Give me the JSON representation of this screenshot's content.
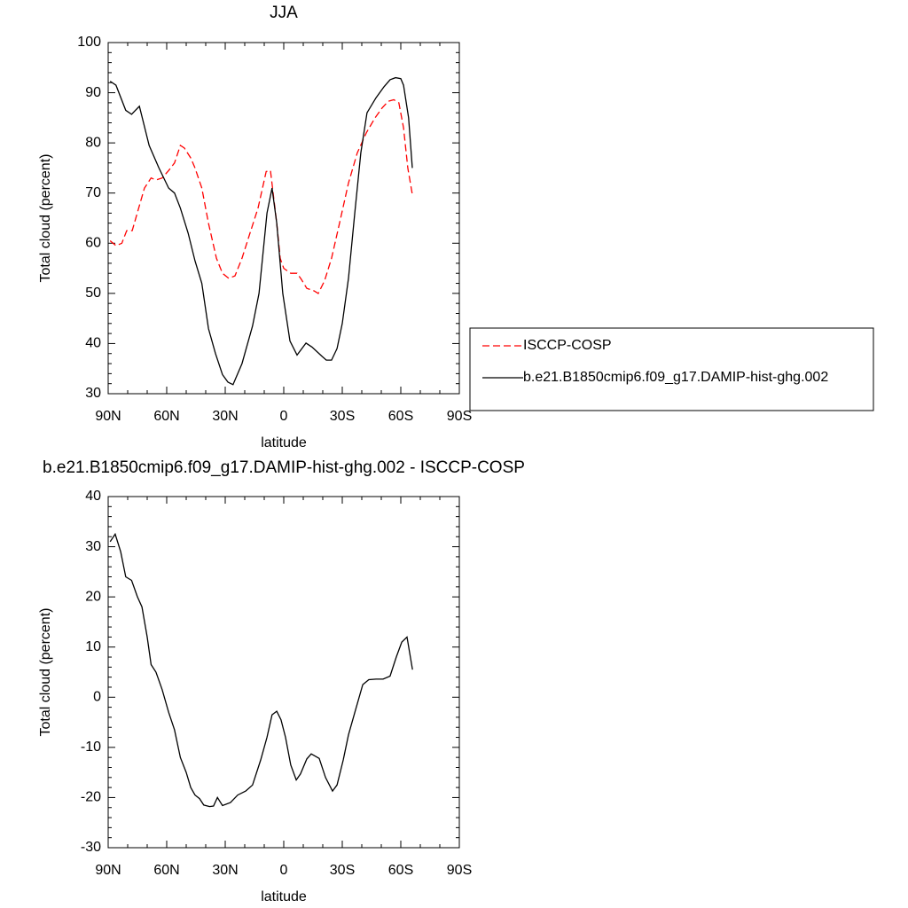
{
  "chart_data": [
    {
      "type": "line",
      "title": "JJA",
      "xlabel": "latitude",
      "ylabel": "Total cloud (percent)",
      "xlim": [
        90,
        -90
      ],
      "xticks": [
        {
          "value": 90,
          "label": "90N"
        },
        {
          "value": 60,
          "label": "60N"
        },
        {
          "value": 30,
          "label": "30N"
        },
        0,
        {
          "value": -30,
          "label": "30S"
        },
        {
          "value": -60,
          "label": "60S"
        },
        {
          "value": -90,
          "label": "90S"
        }
      ],
      "ylim": [
        30,
        100
      ],
      "yticks": [
        30,
        40,
        50,
        60,
        70,
        80,
        90,
        100
      ],
      "legend": "right",
      "series": [
        {
          "name": "ISCCP-COSP",
          "color": "#ff0000",
          "linestyle": "dashed",
          "x": [
            89,
            86,
            83,
            80.5,
            77.7,
            74,
            71.4,
            68,
            65.5,
            62.3,
            59,
            56,
            53,
            51,
            47.7,
            45.5,
            42,
            38.6,
            34.5,
            31.4,
            28.2,
            25,
            21.4,
            17.3,
            13.2,
            9,
            6.8,
            3.6,
            1.8,
            0,
            -3.6,
            -6.8,
            -9,
            -11.8,
            -15.5,
            -17.7,
            -20.9,
            -24.5,
            -28.6,
            -33.2,
            -37.7,
            -42.3,
            -46.8,
            -50.5,
            -53.6,
            -56.4,
            -59,
            -61.4,
            -63.6,
            -66
          ],
          "values": [
            60.5,
            59.5,
            60,
            62.5,
            62.5,
            67.5,
            71,
            73,
            72.6,
            73,
            74.5,
            76,
            79.5,
            79,
            77,
            75,
            71,
            64,
            57,
            54,
            53,
            53.5,
            57,
            62,
            67,
            74.3,
            74.5,
            64,
            57,
            55,
            54,
            54,
            52.8,
            51,
            50.5,
            50,
            52.5,
            57,
            64,
            72,
            78,
            82,
            85,
            87,
            88.3,
            88.6,
            88,
            83,
            75,
            69.5
          ]
        },
        {
          "name": "b.e21.B1850cmip6.f09_g17.DAMIP-hist-ghg.002",
          "color": "#000000",
          "linestyle": "solid",
          "x": [
            89,
            86,
            81,
            78,
            74,
            69,
            64,
            59,
            56,
            53,
            49,
            45.5,
            42,
            38.6,
            35,
            31.4,
            28.6,
            26,
            21.4,
            16,
            12.7,
            8.6,
            6,
            3.6,
            0.5,
            -3.2,
            -6.8,
            -11.4,
            -14.5,
            -19.5,
            -21.8,
            -24.5,
            -27.3,
            -30,
            -33.2,
            -36.4,
            -39.5,
            -42.7,
            -47.3,
            -51.4,
            -54.5,
            -57.3,
            -60,
            -61.4,
            -64,
            -65.9
          ],
          "values": [
            92.3,
            91.5,
            86.5,
            85.7,
            87.3,
            79.5,
            75,
            71,
            70,
            67,
            62,
            56.5,
            52,
            43,
            38,
            33.8,
            32.3,
            31.8,
            36,
            43.5,
            50,
            66,
            71,
            64,
            50,
            40.5,
            37.7,
            40.1,
            39.3,
            37.5,
            36.7,
            36.7,
            39,
            44,
            53,
            66,
            78,
            86,
            89,
            91.2,
            92.6,
            93,
            92.8,
            91.5,
            85,
            75
          ]
        }
      ]
    },
    {
      "type": "line",
      "title": "b.e21.B1850cmip6.f09_g17.DAMIP-hist-ghg.002 - ISCCP-COSP",
      "xlabel": "latitude",
      "ylabel": "Total cloud (percent)",
      "xlim": [
        90,
        -90
      ],
      "xticks": [
        {
          "value": 90,
          "label": "90N"
        },
        {
          "value": 60,
          "label": "60N"
        },
        {
          "value": 30,
          "label": "30N"
        },
        0,
        {
          "value": -30,
          "label": "30S"
        },
        {
          "value": -60,
          "label": "60S"
        },
        {
          "value": -90,
          "label": "90S"
        }
      ],
      "ylim": [
        -30,
        40
      ],
      "yticks": [
        -30,
        -20,
        -10,
        0,
        10,
        20,
        30,
        40
      ],
      "series": [
        {
          "color": "#000000",
          "linestyle": "solid",
          "x": [
            89,
            86.4,
            83.6,
            81,
            78,
            75,
            72.7,
            70,
            68,
            65.5,
            62.3,
            59,
            56,
            53,
            50,
            47.7,
            45.5,
            43.2,
            41,
            38,
            36,
            34,
            31.4,
            27.3,
            23.6,
            19.5,
            16,
            11.8,
            8.6,
            6,
            3.6,
            1.4,
            -0.9,
            -3.6,
            -6.4,
            -8.6,
            -11.8,
            -14.1,
            -18.2,
            -21.4,
            -25,
            -27.3,
            -30.5,
            -33.2,
            -36.8,
            -40.5,
            -43.6,
            -47.3,
            -50.9,
            -54.5,
            -57.7,
            -60.5,
            -63.2,
            -66
          ],
          "values": [
            31,
            32.5,
            29,
            24,
            23.3,
            20,
            18,
            12,
            6.5,
            5,
            1.5,
            -3,
            -6.5,
            -12,
            -15,
            -18,
            -19.5,
            -20.2,
            -21.5,
            -21.8,
            -21.7,
            -20,
            -21.6,
            -21,
            -19.5,
            -18.7,
            -17.5,
            -12.5,
            -8,
            -3.5,
            -2.8,
            -4.5,
            -8,
            -13.5,
            -16.5,
            -15.3,
            -12.3,
            -11.3,
            -12.2,
            -16,
            -18.7,
            -17.5,
            -12.5,
            -7.5,
            -2.5,
            2.5,
            3.5,
            3.6,
            3.6,
            4.2,
            8,
            11,
            12,
            5.5
          ]
        }
      ]
    }
  ]
}
